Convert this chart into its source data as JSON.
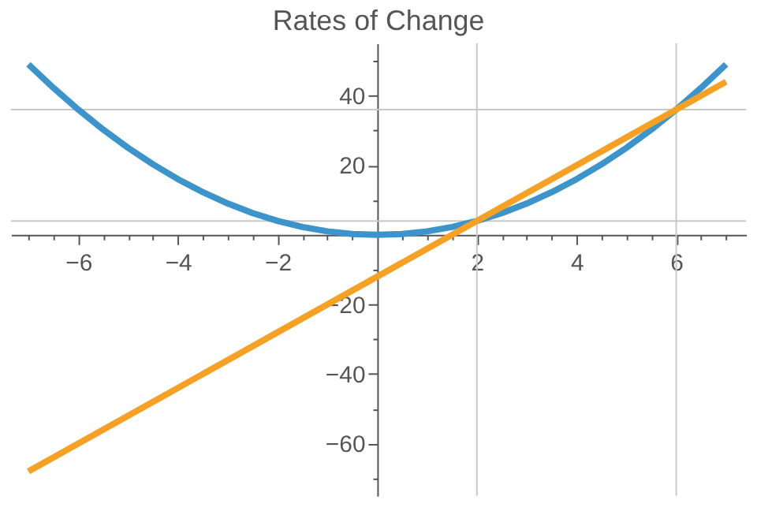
{
  "chart_data": {
    "type": "line",
    "title": "Rates of Change",
    "series": [
      {
        "color": "#3d94ca",
        "x": [
          -7,
          -6.5,
          -6,
          -5.5,
          -5,
          -4.5,
          -4,
          -3.5,
          -3,
          -2.5,
          -2,
          -1.5,
          -1,
          -0.5,
          0,
          0.5,
          1,
          1.5,
          2,
          2.5,
          3,
          3.5,
          4,
          4.5,
          5,
          5.5,
          6,
          6.5,
          7
        ],
        "values": [
          49,
          42.25,
          36,
          30.25,
          25,
          20.25,
          16,
          12.25,
          9,
          6.25,
          4,
          2.25,
          1,
          0.25,
          0,
          0.25,
          1,
          2.25,
          4,
          6.25,
          9,
          12.25,
          16,
          20.25,
          25,
          30.25,
          36,
          42.25,
          49
        ]
      },
      {
        "color": "#f4a125",
        "x": [
          -7,
          7
        ],
        "values": [
          -68,
          44
        ]
      }
    ],
    "xlim": [
      -7.35,
      7.4
    ],
    "ylim": [
      -75,
      55
    ],
    "xticks": [
      {
        "value": -7,
        "label": null
      },
      {
        "value": -6.5,
        "label": null
      },
      -6,
      {
        "value": -5.5,
        "label": null
      },
      {
        "value": -5,
        "label": null
      },
      {
        "value": -4.5,
        "label": null
      },
      -4,
      {
        "value": -3.5,
        "label": null
      },
      {
        "value": -3,
        "label": null
      },
      {
        "value": -2.5,
        "label": null
      },
      -2,
      {
        "value": -1.5,
        "label": null
      },
      {
        "value": -1,
        "label": null
      },
      {
        "value": -0.5,
        "label": null
      },
      {
        "value": 0.5,
        "label": null
      },
      {
        "value": 1,
        "label": null
      },
      {
        "value": 1.5,
        "label": null
      },
      2,
      {
        "value": 2.5,
        "label": null
      },
      {
        "value": 3,
        "label": null
      },
      {
        "value": 3.5,
        "label": null
      },
      4,
      {
        "value": 4.5,
        "label": null
      },
      {
        "value": 5,
        "label": null
      },
      {
        "value": 5.5,
        "label": null
      },
      6,
      {
        "value": 6.5,
        "label": null
      },
      {
        "value": 7,
        "label": null
      }
    ],
    "yticks": [
      {
        "value": -70,
        "label": null
      },
      -60,
      {
        "value": -50,
        "label": null
      },
      -40,
      {
        "value": -30,
        "label": null
      },
      -20,
      {
        "value": -10,
        "label": null
      },
      {
        "value": 10,
        "label": null
      },
      20,
      {
        "value": 30,
        "label": null
      },
      40,
      {
        "value": 50,
        "label": null
      }
    ],
    "ref_lines": [
      {
        "axis": "x",
        "value": 2,
        "color": "#c8c8c8"
      },
      {
        "axis": "x",
        "value": 6,
        "color": "#c8c8c8"
      },
      {
        "axis": "y",
        "value": 4,
        "color": "#c8c8c8"
      },
      {
        "axis": "y",
        "value": 36,
        "color": "#c8c8c8"
      }
    ],
    "marker": "none",
    "line_style": "solid"
  }
}
